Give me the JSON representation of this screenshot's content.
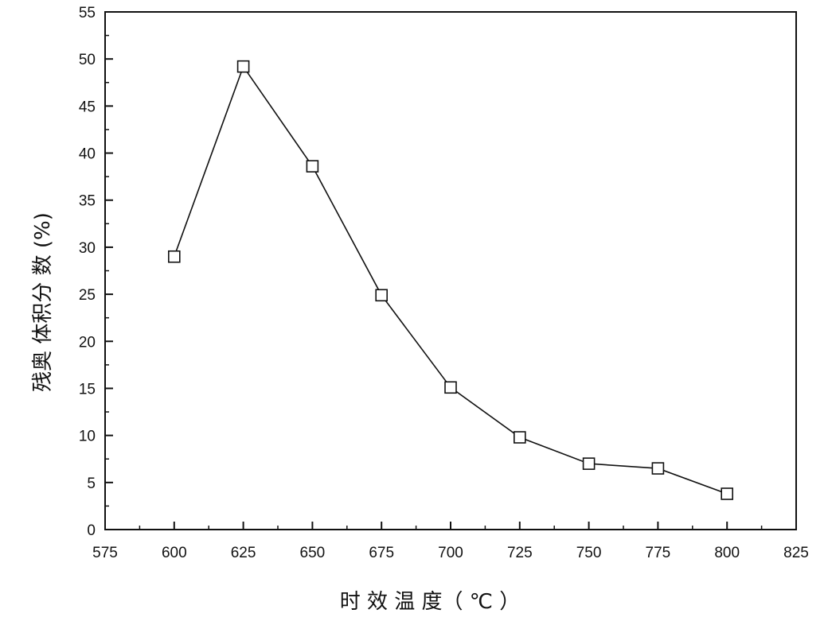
{
  "chart_data": {
    "type": "line",
    "title": "",
    "xlabel": "时 效 温 度（ ℃ ）",
    "ylabel": "残奥 体积分 数 (%)",
    "xlim": [
      575,
      825
    ],
    "ylim": [
      0,
      55
    ],
    "x_ticks": [
      575,
      600,
      625,
      650,
      675,
      700,
      725,
      750,
      775,
      800,
      825
    ],
    "y_ticks": [
      0,
      5,
      10,
      15,
      20,
      25,
      30,
      35,
      40,
      45,
      50,
      55
    ],
    "grid": false,
    "legend": "none",
    "marker": "open-square",
    "line_color": "#111111",
    "series": [
      {
        "x": [
          600,
          625,
          650,
          675,
          700,
          725,
          750,
          775,
          800
        ],
        "y": [
          29.0,
          49.2,
          38.6,
          24.9,
          15.1,
          9.8,
          7.0,
          6.5,
          3.8
        ]
      }
    ]
  }
}
